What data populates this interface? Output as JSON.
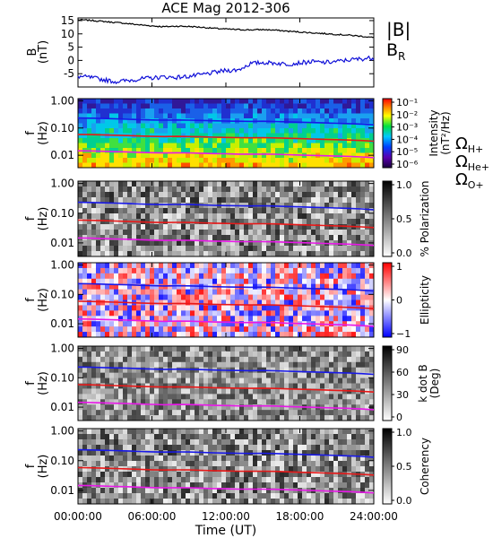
{
  "chart_data": [
    {
      "type": "line",
      "title": "ACE Mag 2012-306",
      "ylabel": "B (nT)",
      "ylim": [
        -10,
        16
      ],
      "yticks": [
        "-5",
        "0",
        "5",
        "10",
        "15"
      ],
      "x": [
        0,
        1,
        2,
        3,
        4,
        5,
        6,
        7,
        8,
        9,
        10,
        11,
        12,
        13,
        14,
        15,
        16,
        17,
        18,
        19,
        20,
        21,
        22,
        23,
        24
      ],
      "series": [
        {
          "name": "|B|",
          "color": "#000000",
          "values": [
            15.3,
            15.1,
            14.7,
            14.3,
            13.9,
            13.4,
            13.0,
            12.7,
            12.9,
            12.8,
            12.5,
            12.1,
            11.8,
            11.6,
            11.5,
            11.6,
            11.4,
            11.0,
            10.7,
            10.4,
            10.1,
            9.8,
            9.5,
            9.1,
            8.6
          ]
        },
        {
          "name": "B",
          "subscript": "R",
          "color": "#1010d8",
          "values": [
            -6.0,
            -6.4,
            -7.2,
            -8.0,
            -7.6,
            -7.0,
            -6.6,
            -6.2,
            -6.4,
            -6.0,
            -5.4,
            -4.6,
            -3.8,
            -3.6,
            -1.2,
            -0.8,
            -1.0,
            -1.4,
            -0.9,
            -0.5,
            -0.8,
            -0.4,
            0.2,
            0.6,
            1.0
          ]
        }
      ]
    },
    {
      "type": "heatmap",
      "panel": "intensity",
      "ylabel": "f (Hz)",
      "yscale": "log",
      "yticks": [
        "1.00",
        "0.10",
        "0.01"
      ],
      "colorbar": {
        "label": "Intensity (nT²/Hz)",
        "ticks": [
          "10⁻¹",
          "10⁻²",
          "10⁻³",
          "10⁻⁴",
          "10⁻⁵",
          "10⁻⁶"
        ],
        "colormap": "rainbow"
      }
    },
    {
      "type": "heatmap",
      "panel": "polarization",
      "ylabel": "f (Hz)",
      "yscale": "log",
      "yticks": [
        "1.00",
        "0.10",
        "0.01"
      ],
      "colorbar": {
        "label": "% Polarization",
        "ticks": [
          "1.0",
          "0.5",
          "0.0"
        ],
        "colormap": "gray"
      }
    },
    {
      "type": "heatmap",
      "panel": "ellipticity",
      "ylabel": "f (Hz)",
      "yscale": "log",
      "yticks": [
        "1.00",
        "0.10",
        "0.01"
      ],
      "colorbar": {
        "label": "Ellipticity",
        "ticks": [
          "1",
          "0",
          "−1"
        ],
        "colormap": "blue-white-red"
      }
    },
    {
      "type": "heatmap",
      "panel": "kdotb",
      "ylabel": "f (Hz)",
      "yscale": "log",
      "yticks": [
        "1.00",
        "0.10",
        "0.01"
      ],
      "colorbar": {
        "label": "k dot B (Deg)",
        "ticks": [
          "90",
          "60",
          "30",
          "0"
        ],
        "colormap": "gray"
      }
    },
    {
      "type": "heatmap",
      "panel": "coherency",
      "ylabel": "f (Hz)",
      "yscale": "log",
      "yticks": [
        "1.00",
        "0.10",
        "0.01"
      ],
      "colorbar": {
        "label": "Coherency",
        "ticks": [
          "1.0",
          "0.5",
          "0.0"
        ],
        "colormap": "gray"
      }
    }
  ],
  "gyro_lines": {
    "x": [
      0,
      1,
      2,
      3,
      4,
      5,
      6,
      7,
      8,
      9,
      10,
      11,
      12,
      13,
      14,
      15,
      16,
      17,
      18,
      19,
      20,
      21,
      22,
      23,
      24
    ],
    "series": [
      {
        "label": "Ω",
        "subscript": "H+",
        "color": "#1818e8",
        "values": [
          0.233,
          0.23,
          0.224,
          0.218,
          0.212,
          0.204,
          0.198,
          0.194,
          0.197,
          0.195,
          0.19,
          0.184,
          0.18,
          0.177,
          0.175,
          0.177,
          0.174,
          0.168,
          0.163,
          0.158,
          0.154,
          0.149,
          0.145,
          0.139,
          0.131
        ]
      },
      {
        "label": "Ω",
        "subscript": "He+",
        "color": "#e81818",
        "values": [
          0.0583,
          0.0575,
          0.056,
          0.0545,
          0.053,
          0.051,
          0.0495,
          0.0485,
          0.0492,
          0.0487,
          0.0475,
          0.046,
          0.045,
          0.0442,
          0.0438,
          0.0442,
          0.0435,
          0.042,
          0.0408,
          0.0395,
          0.0385,
          0.0373,
          0.0362,
          0.0347,
          0.0328
        ]
      },
      {
        "label": "Ω",
        "subscript": "O+",
        "color": "#e818e8",
        "values": [
          0.0146,
          0.0144,
          0.014,
          0.0136,
          0.0133,
          0.0128,
          0.0124,
          0.0121,
          0.0123,
          0.0122,
          0.0119,
          0.0115,
          0.0113,
          0.011,
          0.011,
          0.011,
          0.0109,
          0.0105,
          0.0102,
          0.0099,
          0.0096,
          0.0093,
          0.0091,
          0.0087,
          0.0082
        ]
      }
    ]
  },
  "x_axis": {
    "ticks": [
      "00:00:00",
      "06:00:00",
      "12:00:00",
      "18:00:00",
      "24:00:00"
    ],
    "label": "Time (UT)"
  }
}
